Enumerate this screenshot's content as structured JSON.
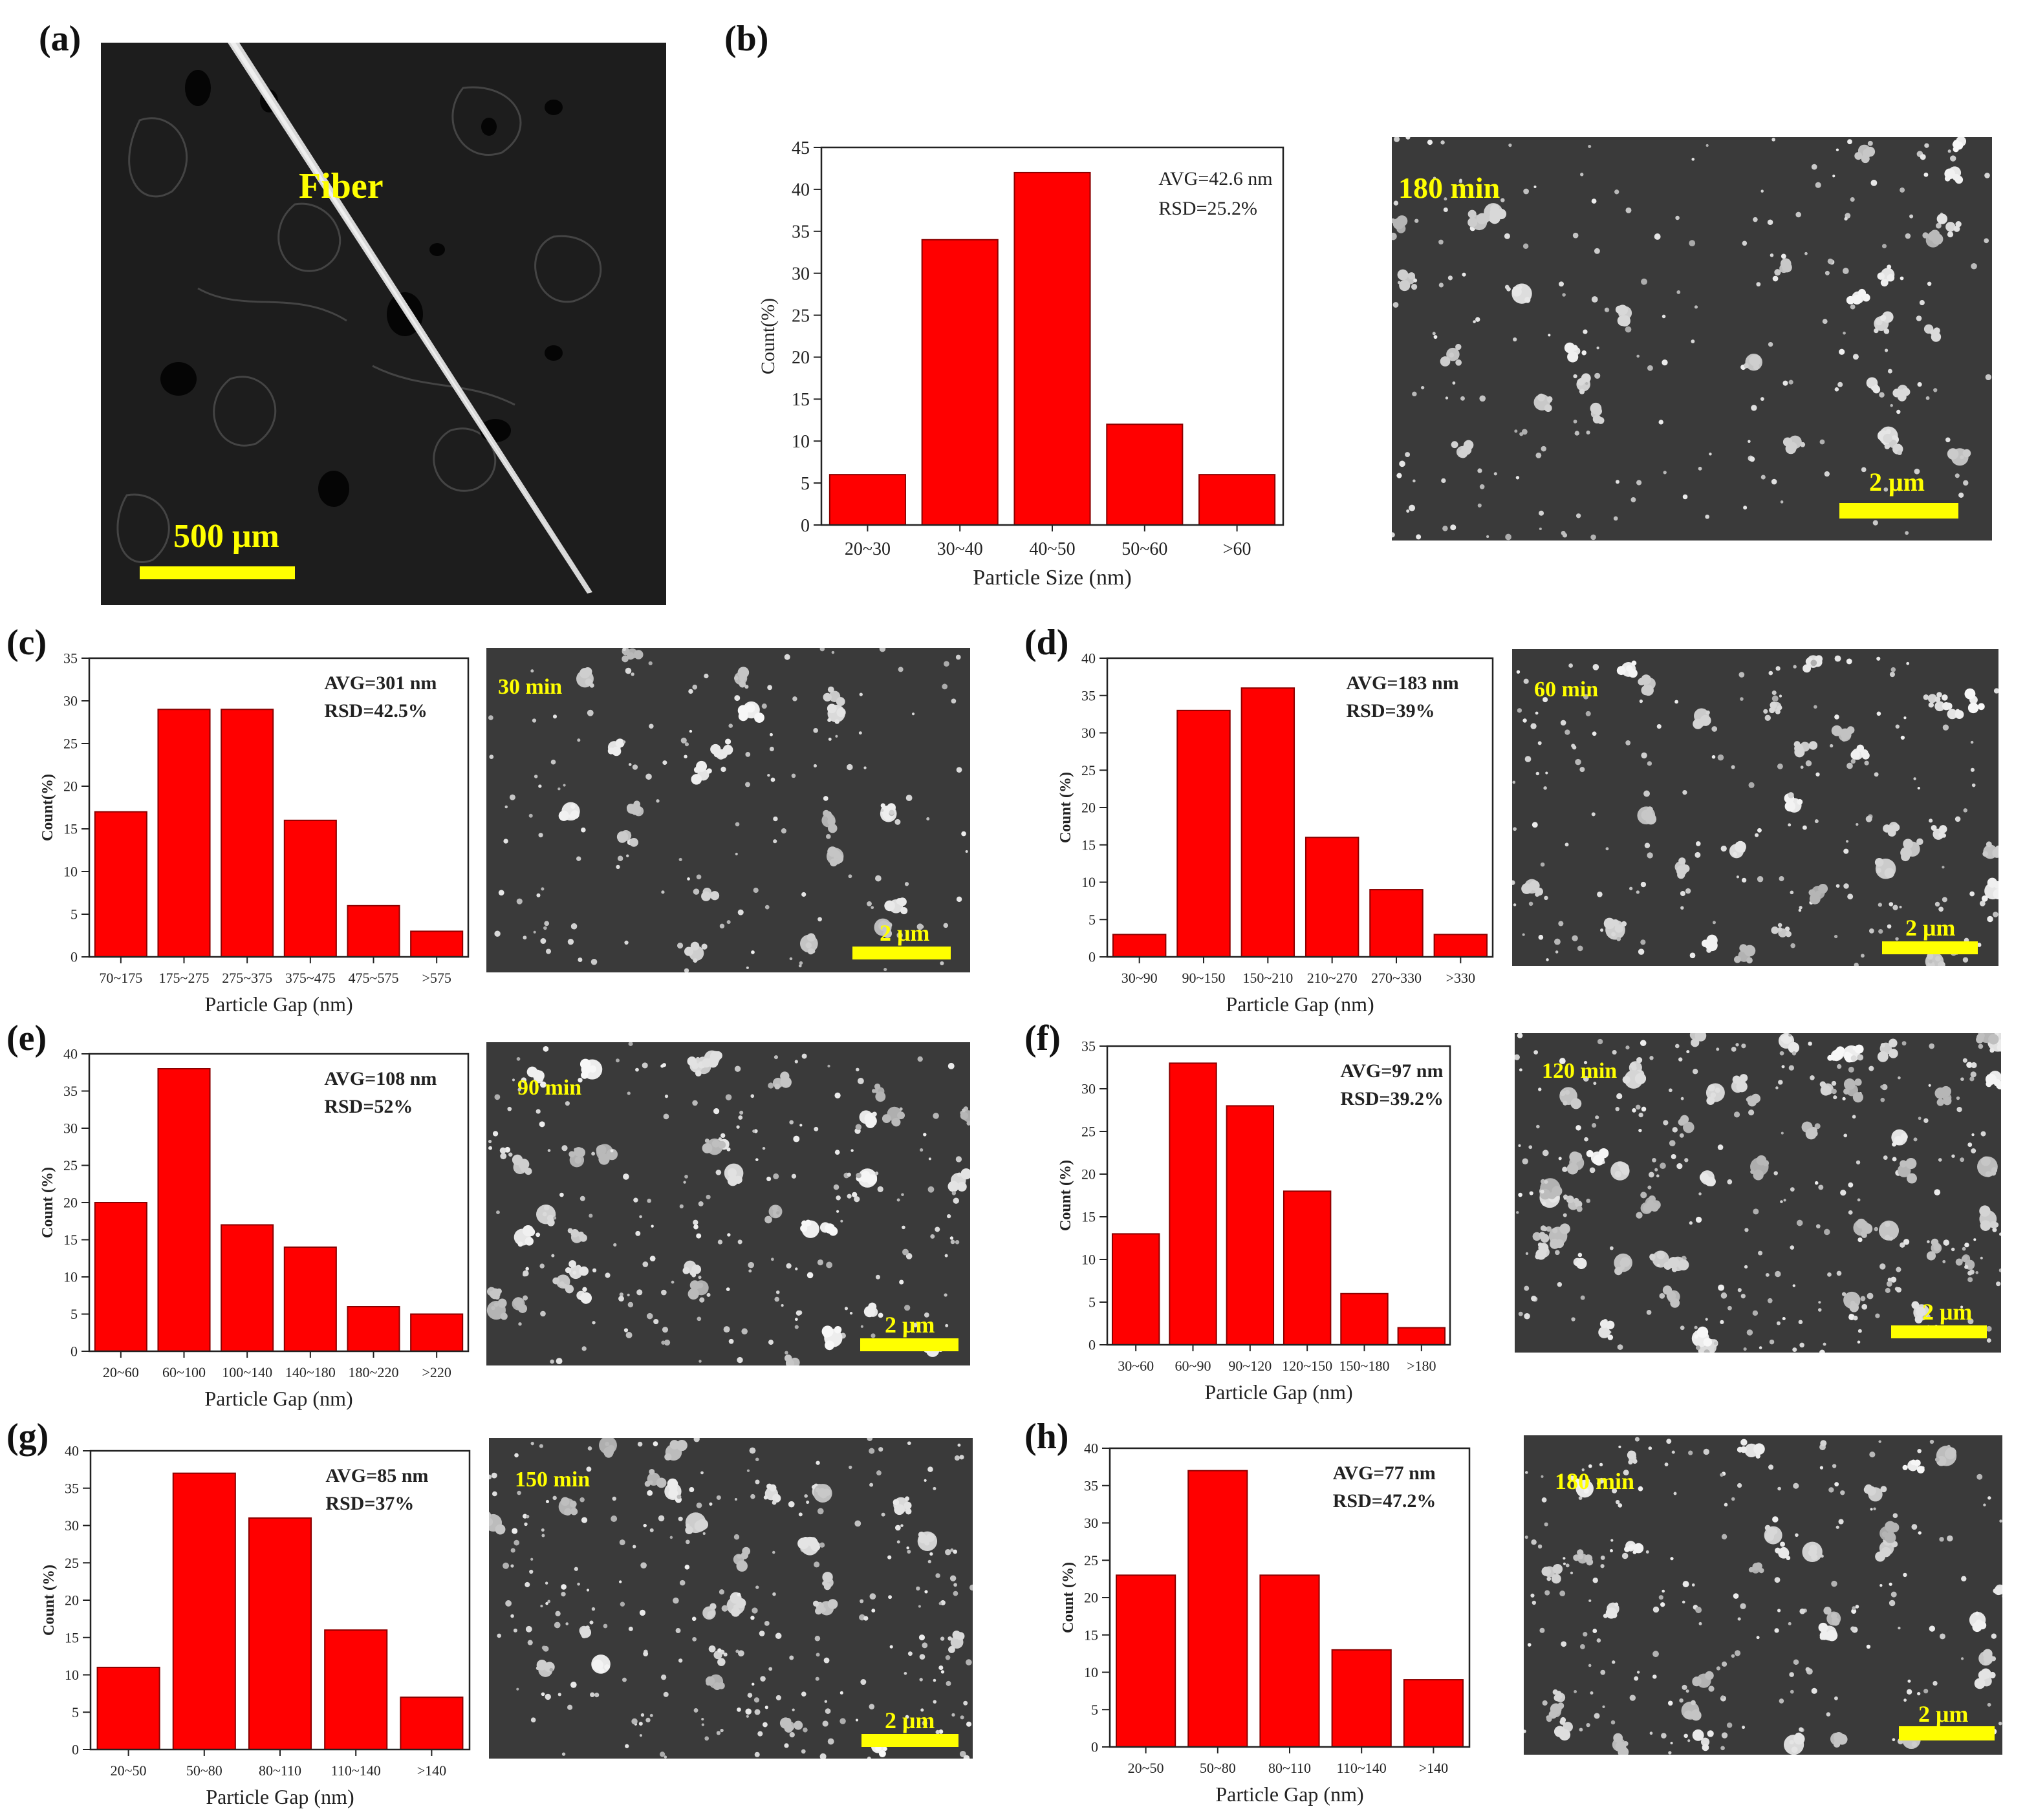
{
  "colors": {
    "bar": "#ff0000",
    "bar_edge": "#8b0000",
    "scalebar": "#ffff00",
    "sem_bg": "#3a3a3a"
  },
  "panels": {
    "a": {
      "label": "(a)",
      "scale": "500 μm",
      "annotation": "Fiber"
    },
    "b": {
      "label": "(b)",
      "time": "180 min",
      "scale": "2 μm"
    },
    "c": {
      "label": "(c)",
      "time": "30 min",
      "scale": "2 μm"
    },
    "d": {
      "label": "(d)",
      "time": "60 min",
      "scale": "2 μm"
    },
    "e": {
      "label": "(e)",
      "time": "90 min",
      "scale": "2 μm"
    },
    "f": {
      "label": "(f)",
      "time": "120 min",
      "scale": "2 μm"
    },
    "g": {
      "label": "(g)",
      "time": "150 min",
      "scale": "2 μm"
    },
    "h": {
      "label": "(h)",
      "time": "180 min",
      "scale": "2 μm"
    }
  },
  "chart_data": [
    {
      "panel": "b",
      "type": "bar",
      "categories": [
        "20~30",
        "30~40",
        "40~50",
        "50~60",
        ">60"
      ],
      "values": [
        6,
        34,
        42,
        12,
        6
      ],
      "xlabel": "Particle Size (nm)",
      "ylabel": "Count(%)",
      "ylim": [
        0,
        45
      ],
      "yticks": [
        0,
        5,
        10,
        15,
        20,
        25,
        30,
        35,
        40,
        45
      ],
      "annotations": [
        "AVG=42.6 nm",
        "RSD=25.2%"
      ]
    },
    {
      "panel": "c",
      "type": "bar",
      "categories": [
        "70~175",
        "175~275",
        "275~375",
        "375~475",
        "475~575",
        ">575"
      ],
      "values": [
        17,
        29,
        29,
        16,
        6,
        3
      ],
      "xlabel": "Particle Gap (nm)",
      "ylabel": "Count(%)",
      "ylim": [
        0,
        35
      ],
      "yticks": [
        0,
        5,
        10,
        15,
        20,
        25,
        30,
        35
      ],
      "annotations": [
        "AVG=301 nm",
        "RSD=42.5%"
      ]
    },
    {
      "panel": "d",
      "type": "bar",
      "categories": [
        "30~90",
        "90~150",
        "150~210",
        "210~270",
        "270~330",
        ">330"
      ],
      "values": [
        3,
        33,
        36,
        16,
        9,
        3
      ],
      "xlabel": "Particle Gap (nm)",
      "ylabel": "Count (%)",
      "ylim": [
        0,
        40
      ],
      "yticks": [
        0,
        5,
        10,
        15,
        20,
        25,
        30,
        35,
        40
      ],
      "annotations": [
        "AVG=183 nm",
        "RSD=39%"
      ]
    },
    {
      "panel": "e",
      "type": "bar",
      "categories": [
        "20~60",
        "60~100",
        "100~140",
        "140~180",
        "180~220",
        ">220"
      ],
      "values": [
        20,
        38,
        17,
        14,
        6,
        5
      ],
      "xlabel": "Particle Gap (nm)",
      "ylabel": "Count (%)",
      "ylim": [
        0,
        40
      ],
      "yticks": [
        0,
        5,
        10,
        15,
        20,
        25,
        30,
        35,
        40
      ],
      "annotations": [
        "AVG=108 nm",
        "RSD=52%"
      ]
    },
    {
      "panel": "f",
      "type": "bar",
      "categories": [
        "30~60",
        "60~90",
        "90~120",
        "120~150",
        "150~180",
        ">180"
      ],
      "values": [
        13,
        33,
        28,
        18,
        6,
        2
      ],
      "xlabel": "Particle Gap (nm)",
      "ylabel": "Count (%)",
      "ylim": [
        0,
        35
      ],
      "yticks": [
        0,
        5,
        10,
        15,
        20,
        25,
        30,
        35
      ],
      "annotations": [
        "AVG=97 nm",
        "RSD=39.2%"
      ]
    },
    {
      "panel": "g",
      "type": "bar",
      "categories": [
        "20~50",
        "50~80",
        "80~110",
        "110~140",
        ">140"
      ],
      "values": [
        11,
        37,
        31,
        16,
        7
      ],
      "xlabel": "Particle Gap (nm)",
      "ylabel": "Count (%)",
      "ylim": [
        0,
        40
      ],
      "yticks": [
        0,
        5,
        10,
        15,
        20,
        25,
        30,
        35,
        40
      ],
      "annotations": [
        "AVG=85 nm",
        "RSD=37%"
      ]
    },
    {
      "panel": "h",
      "type": "bar",
      "categories": [
        "20~50",
        "50~80",
        "80~110",
        "110~140",
        ">140"
      ],
      "values": [
        23,
        37,
        23,
        13,
        9
      ],
      "xlabel": "Particle Gap (nm)",
      "ylabel": "Count (%)",
      "ylim": [
        0,
        40
      ],
      "yticks": [
        0,
        5,
        10,
        15,
        20,
        25,
        30,
        35,
        40
      ],
      "annotations": [
        "AVG=77 nm",
        "RSD=47.2%"
      ]
    }
  ]
}
